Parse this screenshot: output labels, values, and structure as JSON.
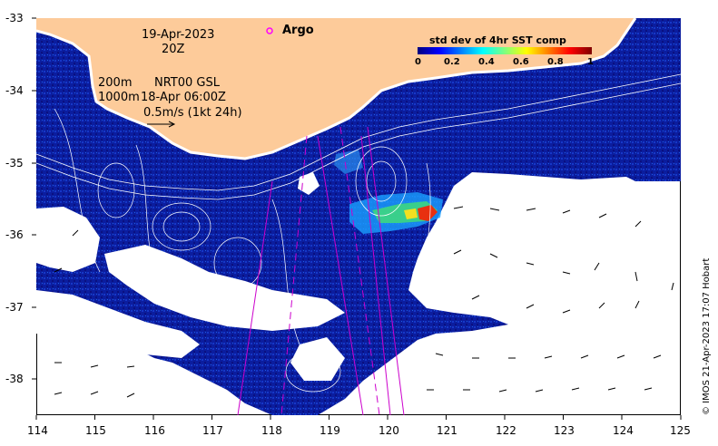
{
  "map": {
    "date": "19-Apr-2023",
    "time": "20Z",
    "depth_line_1": "200m",
    "depth_line_2": "1000m",
    "product": "NRT00 GSL",
    "product_date": "18-Apr 06:00Z",
    "vector_scale": "0.5m/s (1kt 24h)",
    "argo_label": "Argo",
    "credit": "© IMOS 21-Apr-2023 17:07 Hobart",
    "colors": {
      "land": "#fdcb9a",
      "ocean_low": "#0a1a9a",
      "cloud": "#ffffff",
      "argo": "#ff00ff",
      "track": "#cc00cc"
    }
  },
  "legend": {
    "title": "std dev of 4hr SST comp",
    "ticks": [
      "0",
      "0.2",
      "0.4",
      "0.6",
      "0.8",
      "1"
    ]
  },
  "axes": {
    "x_ticks": [
      "114",
      "115",
      "116",
      "117",
      "118",
      "119",
      "120",
      "121",
      "122",
      "123",
      "124",
      "125"
    ],
    "y_ticks": [
      "-33",
      "-34",
      "-35",
      "-36",
      "-37",
      "-38"
    ]
  }
}
